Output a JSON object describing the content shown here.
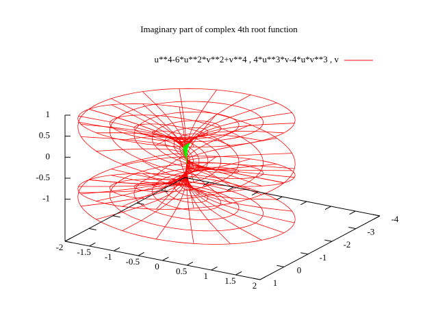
{
  "chart_data": {
    "type": "surface",
    "title": "Imaginary part of complex 4th root function",
    "legend": {
      "label": "u**4-6*u**2*v**2+v**4 , 4*u**3*v-4*u*v**3 , v",
      "color": "#ff0000"
    },
    "highlight_color": "#00ff00",
    "xlim": [
      -2,
      2
    ],
    "xticks": [
      -2,
      -1.5,
      -1,
      -0.5,
      0,
      0.5,
      1,
      1.5,
      2
    ],
    "ylim": [
      -4,
      1
    ],
    "yticks": [
      1,
      0,
      -1,
      -2,
      -3,
      -4
    ],
    "zlim": [
      -2,
      1
    ],
    "zticks": [
      -1,
      -0.5,
      0,
      0.5,
      1
    ]
  }
}
